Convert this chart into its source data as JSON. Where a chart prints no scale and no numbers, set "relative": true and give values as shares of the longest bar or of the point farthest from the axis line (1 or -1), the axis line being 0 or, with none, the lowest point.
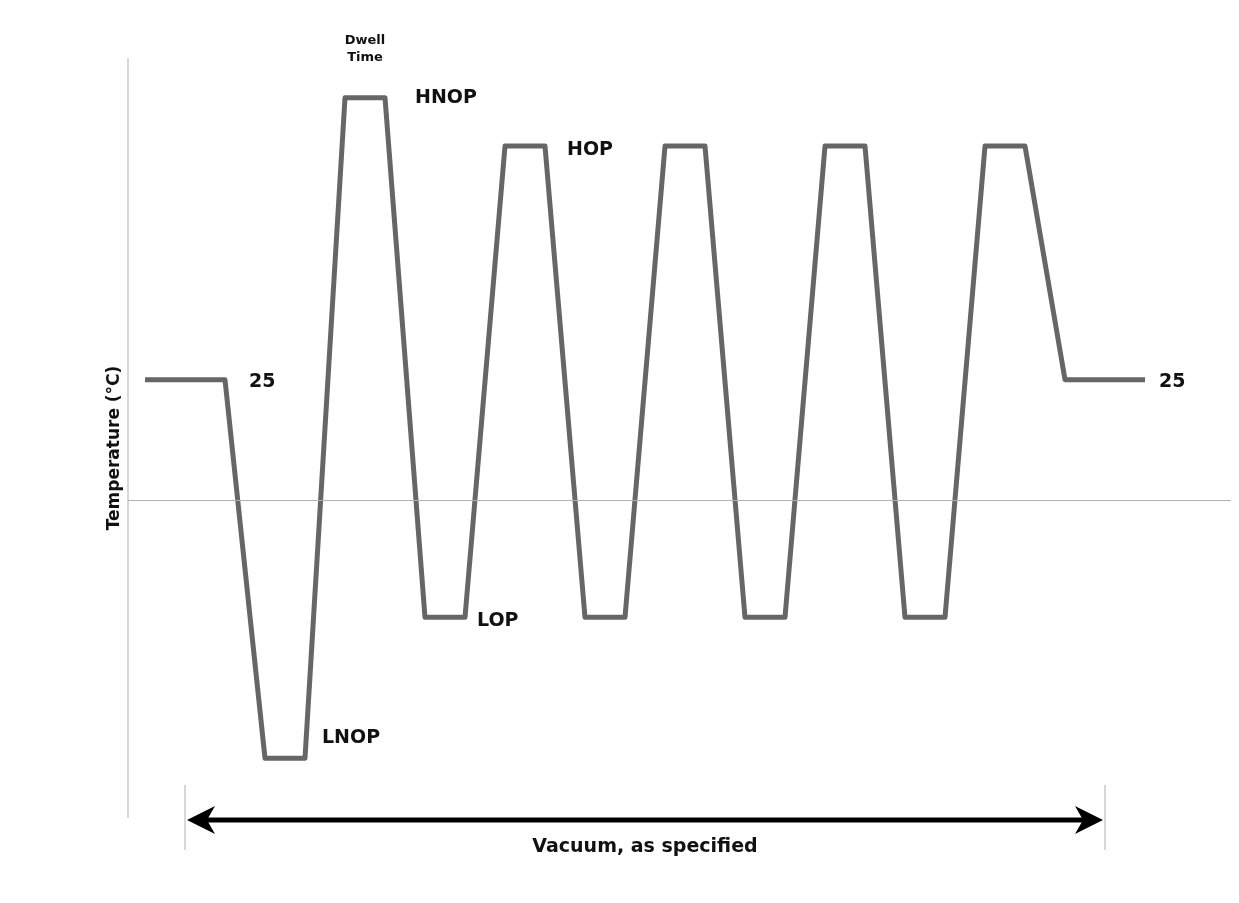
{
  "chart_data": {
    "type": "line",
    "relative": true,
    "ylabel": "Temperature (°C)",
    "color": "#666666",
    "marker": "none",
    "legend": false,
    "categories": [
      null,
      null,
      null,
      null,
      null,
      null,
      null,
      null,
      null,
      null,
      null,
      null,
      null,
      null,
      null,
      null,
      null,
      null,
      null,
      null,
      null,
      null,
      null,
      null,
      null,
      null
    ],
    "values": [
      0.3,
      0.3,
      0.3,
      -0.64,
      -0.64,
      1,
      1,
      -0.29,
      -0.29,
      0.88,
      0.88,
      -0.29,
      -0.29,
      0.88,
      0.88,
      -0.29,
      -0.29,
      0.88,
      0.88,
      -0.29,
      -0.29,
      0.88,
      0.88,
      0.3,
      0.3,
      0.3
    ],
    "annotations": [
      "25",
      "LNOP",
      "Dwell Time",
      "HNOP",
      "HOP",
      "LOP",
      "25",
      "Vacuum, as specified"
    ]
  }
}
